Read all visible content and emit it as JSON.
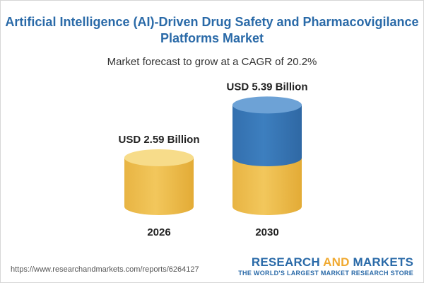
{
  "header": {
    "title_line1": "Artificial Intelligence (AI)-Driven Drug Safety and Pharmacovigilance",
    "title_line2": "Platforms Market",
    "subtitle": "Market forecast to grow at a CAGR of 20.2%"
  },
  "chart_data": {
    "type": "bar",
    "style": "3d-cylinder",
    "categories": [
      "2026",
      "2030"
    ],
    "values": [
      2.59,
      5.39
    ],
    "value_labels": [
      "USD 2.59 Billion",
      "USD 5.39 Billion"
    ],
    "unit": "USD Billion",
    "title": "Artificial Intelligence (AI)-Driven Drug Safety and Pharmacovigilance Platforms Market",
    "subtitle": "Market forecast to grow at a CAGR of 20.2%",
    "cagr_percent": 20.2,
    "highlight": "The 2030 cylinder shows the 2026 value in gold and the growth in blue",
    "grid": false,
    "legend": "none",
    "colors": {
      "base": "#f2c75c",
      "base_top": "#f7dc8a",
      "growth": "#3d7fbf",
      "growth_top": "#6da2d6"
    }
  },
  "footer": {
    "source_url": "https://www.researchandmarkets.com/reports/6264127",
    "brand_part1": "RESEARCH ",
    "brand_part2": "AND",
    "brand_part3": " MARKETS",
    "tagline": "THE WORLD'S LARGEST MARKET RESEARCH STORE"
  }
}
